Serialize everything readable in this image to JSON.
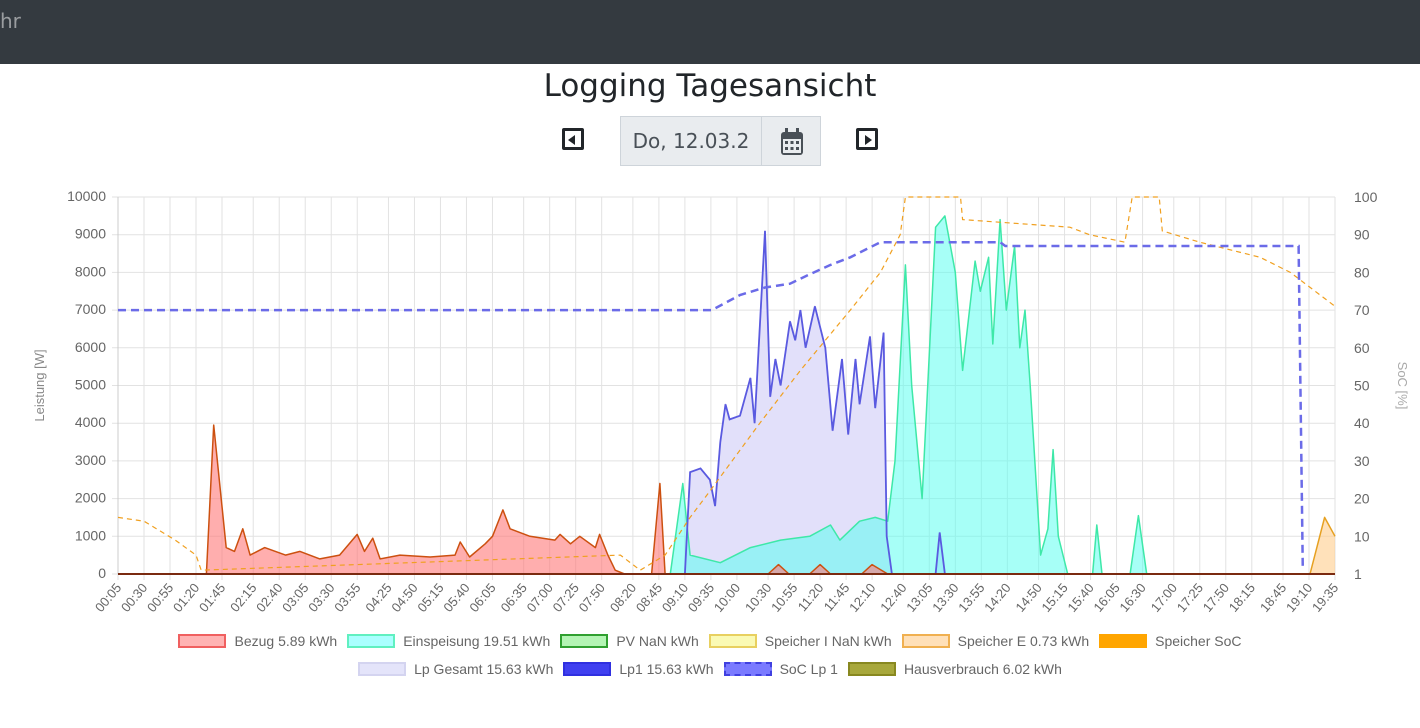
{
  "navbar": {
    "brand_fragment": "hr"
  },
  "header": {
    "title": "Logging Tagesansicht",
    "date_value": "Do, 12.03.2",
    "prev_icon": "caret-left-square-icon",
    "next_icon": "caret-right-square-icon",
    "calendar_icon": "calendar-icon"
  },
  "chart_data": {
    "type": "line",
    "xlabel": "",
    "ylabel": "Leistung [W]",
    "y2label": "SoC [%]",
    "ylim": [
      0,
      10000
    ],
    "yticks": [
      "10000",
      "9000",
      "8000",
      "7000",
      "6000",
      "5000",
      "4000",
      "3000",
      "2000",
      "1000",
      "0"
    ],
    "y2lim": [
      0,
      100
    ],
    "y2ticks": [
      "100",
      "90",
      "80",
      "70",
      "60",
      "50",
      "40",
      "30",
      "20",
      "10",
      "1"
    ],
    "grid": true,
    "legend_position": "bottom",
    "xticks": [
      "00:05",
      "00:30",
      "00:55",
      "01:20",
      "01:45",
      "02:15",
      "02:40",
      "03:05",
      "03:30",
      "03:55",
      "04:25",
      "04:50",
      "05:15",
      "05:40",
      "06:05",
      "06:35",
      "07:00",
      "07:25",
      "07:50",
      "08:20",
      "08:45",
      "09:10",
      "09:35",
      "10:00",
      "10:30",
      "10:55",
      "11:20",
      "11:45",
      "12:10",
      "12:40",
      "13:05",
      "13:30",
      "13:55",
      "14:20",
      "14:50",
      "15:15",
      "15:40",
      "16:05",
      "16:30",
      "17:00",
      "17:25",
      "17:50",
      "18:15",
      "18:45",
      "19:10",
      "19:35"
    ],
    "series": [
      {
        "name": "Lp Gesamt 15.63 kWh",
        "axis": "left",
        "fill": "#e2e0fa",
        "stroke": "#d4d2f0",
        "kind": "area",
        "points": [
          [
            "09:10",
            0
          ],
          [
            "09:15",
            2700
          ],
          [
            "09:25",
            2800
          ],
          [
            "09:34",
            2500
          ],
          [
            "09:39",
            1800
          ],
          [
            "09:44",
            3500
          ],
          [
            "09:49",
            4500
          ],
          [
            "09:53",
            4100
          ],
          [
            "10:03",
            4200
          ],
          [
            "10:13",
            5200
          ],
          [
            "10:17",
            4000
          ],
          [
            "10:27",
            9100
          ],
          [
            "10:32",
            4700
          ],
          [
            "10:37",
            5700
          ],
          [
            "10:42",
            5000
          ],
          [
            "10:51",
            6700
          ],
          [
            "10:56",
            6200
          ],
          [
            "11:01",
            7000
          ],
          [
            "11:06",
            6000
          ],
          [
            "11:15",
            7100
          ],
          [
            "11:25",
            6000
          ],
          [
            "11:32",
            3800
          ],
          [
            "11:41",
            5700
          ],
          [
            "11:47",
            3700
          ],
          [
            "11:54",
            5700
          ],
          [
            "11:58",
            4500
          ],
          [
            "12:08",
            6300
          ],
          [
            "12:13",
            4400
          ],
          [
            "12:21",
            6400
          ],
          [
            "12:24",
            1000
          ],
          [
            "12:29",
            0
          ],
          [
            "13:11",
            0
          ],
          [
            "13:15",
            1100
          ],
          [
            "13:20",
            0
          ]
        ]
      },
      {
        "name": "Einspeisung 19.51 kWh",
        "axis": "left",
        "fill": "rgba(80,255,240,0.5)",
        "stroke": "#3ee8a8",
        "kind": "area",
        "points": [
          [
            "08:56",
            0
          ],
          [
            "09:08",
            2400
          ],
          [
            "09:15",
            500
          ],
          [
            "09:44",
            300
          ],
          [
            "10:13",
            700
          ],
          [
            "10:42",
            900
          ],
          [
            "11:10",
            1000
          ],
          [
            "11:30",
            1300
          ],
          [
            "11:39",
            900
          ],
          [
            "11:58",
            1400
          ],
          [
            "12:13",
            1500
          ],
          [
            "12:25",
            1400
          ],
          [
            "12:32",
            3000
          ],
          [
            "12:42",
            8200
          ],
          [
            "12:48",
            5000
          ],
          [
            "12:58",
            2000
          ],
          [
            "13:11",
            9200
          ],
          [
            "13:20",
            9500
          ],
          [
            "13:30",
            8000
          ],
          [
            "13:37",
            5400
          ],
          [
            "13:49",
            8300
          ],
          [
            "13:54",
            7500
          ],
          [
            "14:02",
            8400
          ],
          [
            "14:06",
            6100
          ],
          [
            "14:13",
            9400
          ],
          [
            "14:19",
            7000
          ],
          [
            "14:27",
            8700
          ],
          [
            "14:32",
            6000
          ],
          [
            "14:37",
            7000
          ],
          [
            "14:42",
            5000
          ],
          [
            "14:52",
            500
          ],
          [
            "14:59",
            1200
          ],
          [
            "15:04",
            3300
          ],
          [
            "15:09",
            1000
          ],
          [
            "15:18",
            0
          ],
          [
            "15:42",
            0
          ],
          [
            "15:46",
            1300
          ],
          [
            "15:51",
            0
          ],
          [
            "16:18",
            0
          ],
          [
            "16:26",
            1550
          ],
          [
            "16:34",
            0
          ]
        ]
      },
      {
        "name": "Bezug 5.89 kWh",
        "axis": "left",
        "fill": "rgba(255,120,120,0.6)",
        "stroke": "#cc5010",
        "kind": "area",
        "points": [
          [
            "00:05",
            0
          ],
          [
            "01:30",
            0
          ],
          [
            "01:37",
            3950
          ],
          [
            "01:49",
            700
          ],
          [
            "01:57",
            600
          ],
          [
            "02:05",
            1200
          ],
          [
            "02:12",
            500
          ],
          [
            "02:26",
            700
          ],
          [
            "02:46",
            500
          ],
          [
            "03:00",
            600
          ],
          [
            "03:19",
            400
          ],
          [
            "03:38",
            500
          ],
          [
            "03:55",
            1050
          ],
          [
            "04:02",
            600
          ],
          [
            "04:10",
            950
          ],
          [
            "04:17",
            400
          ],
          [
            "04:36",
            500
          ],
          [
            "05:05",
            450
          ],
          [
            "05:29",
            500
          ],
          [
            "05:34",
            850
          ],
          [
            "05:43",
            450
          ],
          [
            "05:58",
            800
          ],
          [
            "06:05",
            1000
          ],
          [
            "06:15",
            1700
          ],
          [
            "06:22",
            1200
          ],
          [
            "06:41",
            1000
          ],
          [
            "07:05",
            900
          ],
          [
            "07:10",
            1050
          ],
          [
            "07:20",
            800
          ],
          [
            "07:29",
            1000
          ],
          [
            "07:44",
            700
          ],
          [
            "07:48",
            1050
          ],
          [
            "07:56",
            500
          ],
          [
            "08:03",
            100
          ],
          [
            "08:12",
            0
          ],
          [
            "08:38",
            0
          ],
          [
            "08:46",
            2400
          ],
          [
            "08:51",
            0
          ],
          [
            "10:30",
            0
          ],
          [
            "10:40",
            250
          ],
          [
            "10:50",
            0
          ],
          [
            "11:10",
            0
          ],
          [
            "11:20",
            250
          ],
          [
            "11:30",
            0
          ],
          [
            "12:00",
            0
          ],
          [
            "12:10",
            250
          ],
          [
            "12:25",
            0
          ]
        ]
      },
      {
        "name": "Speicher E 0.73 kWh",
        "axis": "left",
        "fill": "rgba(255,205,140,0.6)",
        "stroke": "#e6a020",
        "kind": "area",
        "points": [
          [
            "19:11",
            0
          ],
          [
            "19:25",
            1500
          ],
          [
            "19:35",
            1000
          ]
        ]
      },
      {
        "name": "Lp1 15.63 kWh",
        "axis": "left",
        "fill": "none",
        "stroke": "#5a5ae0",
        "kind": "line",
        "ref": "Lp Gesamt 15.63 kWh"
      },
      {
        "name": "PV NaN kWh",
        "axis": "left",
        "fill": "#b4f5b4",
        "stroke": "#1a8a1a",
        "kind": "line",
        "points": [
          [
            "00:05",
            0
          ],
          [
            "19:35",
            0
          ]
        ]
      },
      {
        "name": "Speicher I NaN kWh",
        "axis": "left",
        "fill": "#f8f8b0",
        "stroke": "#e8d860",
        "kind": "none"
      },
      {
        "name": "Hausverbrauch 6.02 kWh",
        "axis": "left",
        "fill": "#a8a83c",
        "stroke": "#7a2a10",
        "kind": "line",
        "points": [
          [
            "00:05",
            0
          ],
          [
            "19:35",
            0
          ]
        ]
      },
      {
        "name": "Speicher SoC",
        "axis": "right",
        "fill": "#ffa500",
        "stroke": "#f0a020",
        "kind": "dashed-thin",
        "points": [
          [
            "00:05",
            15
          ],
          [
            "00:30",
            14
          ],
          [
            "01:00",
            9
          ],
          [
            "01:20",
            5
          ],
          [
            "01:25",
            1
          ],
          [
            "08:08",
            5
          ],
          [
            "08:27",
            1
          ],
          [
            "08:51",
            5
          ],
          [
            "09:15",
            15
          ],
          [
            "09:34",
            22
          ],
          [
            "10:22",
            40
          ],
          [
            "11:01",
            54
          ],
          [
            "11:49",
            70
          ],
          [
            "12:18",
            80
          ],
          [
            "12:37",
            90
          ],
          [
            "12:42",
            100
          ],
          [
            "13:35",
            100
          ],
          [
            "13:37",
            94
          ],
          [
            "15:20",
            92
          ],
          [
            "15:39",
            90
          ],
          [
            "16:13",
            88
          ],
          [
            "16:20",
            100
          ],
          [
            "16:46",
            100
          ],
          [
            "16:49",
            91
          ],
          [
            "17:25",
            88
          ],
          [
            "18:23",
            84
          ],
          [
            "18:52",
            80
          ],
          [
            "19:35",
            71
          ]
        ]
      },
      {
        "name": "SoC Lp 1",
        "axis": "right",
        "fill": "#7a7aff",
        "stroke": "#6b6be8",
        "kind": "dashed",
        "points": [
          [
            "00:05",
            70
          ],
          [
            "09:36",
            70
          ],
          [
            "10:03",
            74
          ],
          [
            "10:27",
            76
          ],
          [
            "10:51",
            77
          ],
          [
            "11:06",
            79
          ],
          [
            "11:30",
            82
          ],
          [
            "11:49",
            84
          ],
          [
            "12:18",
            88
          ],
          [
            "14:13",
            88
          ],
          [
            "14:18",
            87
          ],
          [
            "19:00",
            87
          ],
          [
            "19:04",
            1
          ]
        ]
      }
    ]
  },
  "legend": {
    "row1": [
      {
        "label": "Bezug 5.89 kWh",
        "fill": "#ffb3b3",
        "border": "#f06060"
      },
      {
        "label": "Einspeisung 19.51 kWh",
        "fill": "#aaffff",
        "border": "#60f0c0"
      },
      {
        "label": "PV NaN kWh",
        "fill": "#b4f5b4",
        "border": "#30a030"
      },
      {
        "label": "Speicher I NaN kWh",
        "fill": "#fafab4",
        "border": "#e8d060"
      },
      {
        "label": "Speicher E 0.73 kWh",
        "fill": "#ffe0b8",
        "border": "#f0b050"
      },
      {
        "label": "Speicher SoC",
        "fill": "#ffa500",
        "border": "#ffa500"
      }
    ],
    "row2": [
      {
        "label": "Lp Gesamt 15.63 kWh",
        "fill": "#e4e4fa",
        "border": "#d4d4f0"
      },
      {
        "label": "Lp1 15.63 kWh",
        "fill": "#4040f0",
        "border": "#3030e0"
      },
      {
        "label": "SoC Lp 1",
        "fill": "#7a7aff",
        "border": "#4040e0"
      },
      {
        "label": "Hausverbrauch 6.02 kWh",
        "fill": "#a8a83c",
        "border": "#888820"
      }
    ]
  }
}
